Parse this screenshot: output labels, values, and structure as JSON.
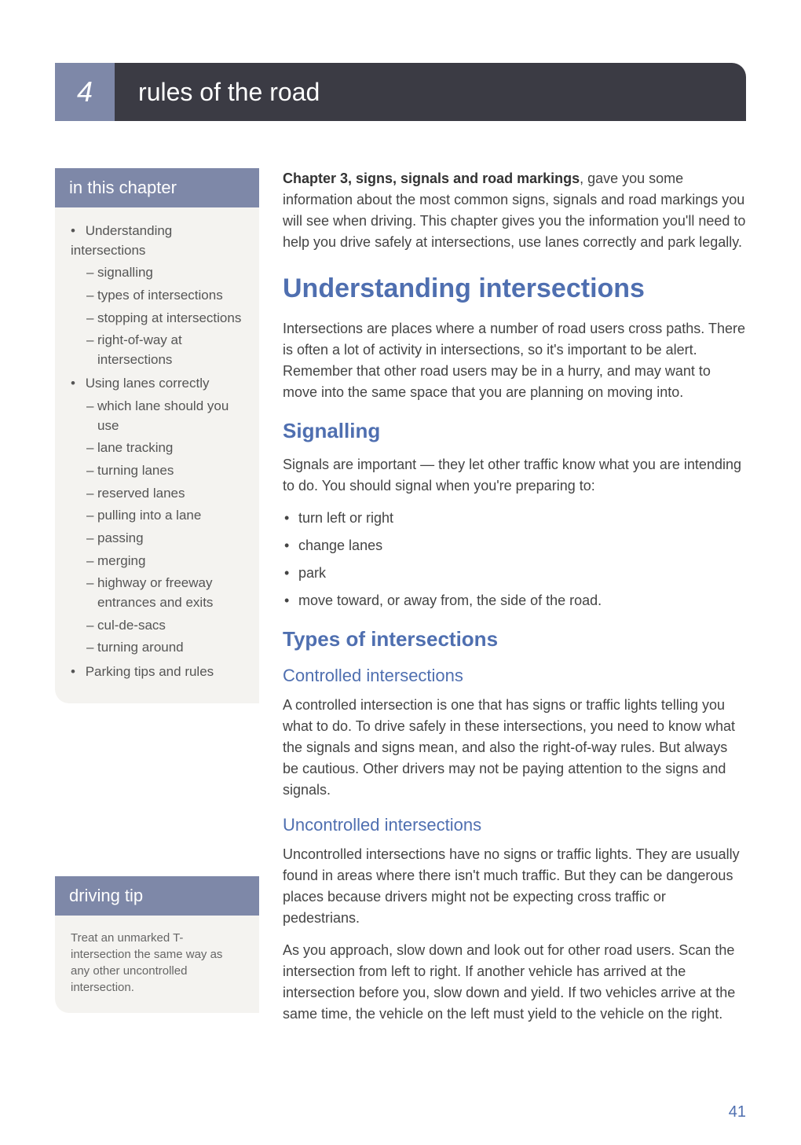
{
  "chapter": {
    "number": "4",
    "title": "rules of the road"
  },
  "sidebar": {
    "inThisChapter": {
      "header": "in this chapter",
      "items": [
        {
          "label": "Understanding intersections",
          "sub": [
            "signalling",
            "types of intersections",
            "stopping at intersections",
            "right-of-way at intersections"
          ]
        },
        {
          "label": "Using lanes correctly",
          "sub": [
            "which lane should you use",
            "lane tracking",
            "turning lanes",
            "reserved lanes",
            "pulling into a lane",
            "passing",
            "merging",
            "highway or freeway entrances and exits",
            "cul-de-sacs",
            "turning around"
          ]
        },
        {
          "label": "Parking tips and rules",
          "sub": []
        }
      ]
    },
    "drivingTip": {
      "header": "driving tip",
      "body": "Treat an unmarked T-intersection the same way as any other uncontrolled intersection."
    }
  },
  "main": {
    "intro_bold": "Chapter 3, signs, signals and road markings",
    "intro_rest": ", gave you some information about the most common signs, signals and road markings you will see when driving. This chapter gives you the information you'll need to help you drive safely at intersections, use lanes correctly and park legally.",
    "h1": "Understanding intersections",
    "p2": "Intersections are places where a number of road users cross paths. There is often a lot of activity in intersections, so it's important to be alert. Remember that other road users may be in a hurry, and may want to move into the same space that you are planning on moving into.",
    "h2a": "Signalling",
    "p3": "Signals are important — they let other traffic know what you are intending to do. You should signal when you're preparing to:",
    "bullets": [
      "turn left or right",
      "change lanes",
      "park",
      "move toward, or away from, the side of the road."
    ],
    "h2b": "Types of intersections",
    "h3a": "Controlled intersections",
    "p4": "A controlled intersection is one that has signs or traffic lights telling you what to do. To drive safely in these intersections, you need to know what the signals and signs mean, and also the right-of-way rules. But always be cautious. Other drivers may not be paying attention to the signs and signals.",
    "h3b": "Uncontrolled intersections",
    "p5": "Uncontrolled intersections have no signs or traffic lights. They are usually found in areas where there isn't much traffic. But they can be dangerous places because drivers might not be expecting cross traffic or pedestrians.",
    "p6": "As you approach, slow down and look out for other road users. Scan the intersection from left to right. If another vehicle has arrived at the intersection before you, slow down and yield. If two vehicles arrive at the same time, the vehicle on the left must yield to the vehicle on the right."
  },
  "pageNumber": "41",
  "colors": {
    "blue": "#4f6fb0",
    "slate": "#7e88a8",
    "dark": "#3b3b44",
    "beige": "#f4f3f0"
  }
}
